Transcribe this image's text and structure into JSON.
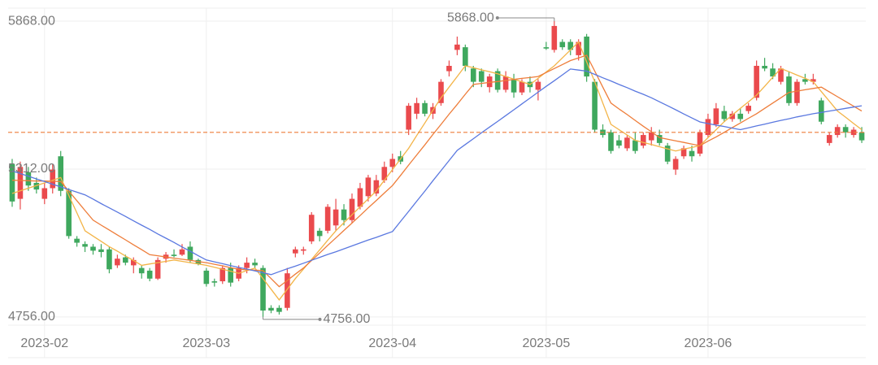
{
  "chart_data": {
    "type": "candlestick",
    "categories": [
      null,
      null,
      null,
      null,
      "2023-02",
      null,
      null,
      null,
      null,
      null,
      null,
      null,
      null,
      null,
      null,
      null,
      null,
      null,
      null,
      null,
      null,
      null,
      null,
      null,
      "2023-03",
      null,
      null,
      null,
      null,
      null,
      null,
      null,
      null,
      null,
      null,
      null,
      null,
      null,
      null,
      null,
      null,
      null,
      null,
      null,
      null,
      null,
      null,
      "2023-04",
      null,
      null,
      null,
      null,
      null,
      null,
      null,
      null,
      null,
      null,
      null,
      null,
      null,
      null,
      null,
      null,
      null,
      null,
      "2023-05",
      null,
      null,
      null,
      null,
      null,
      null,
      null,
      null,
      null,
      null,
      null,
      null,
      null,
      null,
      null,
      null,
      null,
      null,
      null,
      "2023-06",
      null,
      null,
      null,
      null,
      null,
      null,
      null,
      null,
      null,
      null,
      null,
      null,
      null,
      null,
      null,
      null,
      null,
      null,
      null
    ],
    "open": [
      5330,
      5200,
      5300,
      5260,
      5200,
      5240,
      5360,
      5230,
      5050,
      5030,
      5020,
      5010,
      5010,
      4950,
      4980,
      4950,
      4940,
      4930,
      4900,
      4975,
      4990,
      4990,
      5020,
      4970,
      4930,
      4890,
      4890,
      4940,
      4900,
      4940,
      4960,
      4940,
      4790,
      4790,
      4790,
      4995,
      5005,
      5040,
      5080,
      5080,
      5100,
      5160,
      5120,
      5170,
      5210,
      5220,
      5270,
      5320,
      5360,
      5460,
      5520,
      5560,
      5520,
      5560,
      5680,
      5760,
      5770,
      5690,
      5680,
      5620,
      5680,
      5610,
      5650,
      5600,
      5640,
      5610,
      5770,
      5760,
      5790,
      5790,
      5740,
      5810,
      5640,
      5460,
      5450,
      5420,
      5390,
      5420,
      5400,
      5420,
      5440,
      5400,
      5310,
      5360,
      5380,
      5370,
      5440,
      5480,
      5530,
      5500,
      5520,
      5530,
      5580,
      5700,
      5690,
      5640,
      5660,
      5560,
      5650,
      5640,
      5570,
      5410,
      5440,
      5470,
      5440,
      5450
    ],
    "high": [
      5350,
      5340,
      5320,
      5280,
      5260,
      5330,
      5380,
      5240,
      5060,
      5040,
      5030,
      5030,
      5020,
      4990,
      4990,
      4980,
      4950,
      4940,
      4980,
      5000,
      5010,
      5030,
      5040,
      4975,
      4940,
      4900,
      4950,
      4960,
      4950,
      4980,
      4975,
      4950,
      4800,
      4800,
      4940,
      5020,
      5020,
      5150,
      5090,
      5180,
      5200,
      5180,
      5220,
      5260,
      5290,
      5290,
      5340,
      5370,
      5380,
      5560,
      5580,
      5570,
      5560,
      5650,
      5720,
      5810,
      5780,
      5700,
      5690,
      5670,
      5690,
      5680,
      5670,
      5650,
      5660,
      5650,
      5790,
      5868,
      5800,
      5800,
      5800,
      5820,
      5650,
      5480,
      5460,
      5440,
      5440,
      5450,
      5450,
      5470,
      5460,
      5410,
      5360,
      5400,
      5400,
      5460,
      5520,
      5560,
      5550,
      5530,
      5540,
      5560,
      5720,
      5730,
      5710,
      5700,
      5680,
      5650,
      5670,
      5670,
      5580,
      5450,
      5480,
      5480,
      5470,
      5470
    ],
    "low": [
      5170,
      5160,
      5230,
      5220,
      5180,
      5220,
      5210,
      5050,
      5020,
      5000,
      4990,
      4980,
      4920,
      4940,
      4950,
      4920,
      4900,
      4890,
      4895,
      4960,
      4980,
      4985,
      4960,
      4950,
      4870,
      4870,
      4880,
      4870,
      4890,
      4920,
      4940,
      4756,
      4770,
      4765,
      4780,
      4980,
      4990,
      5030,
      5040,
      5070,
      5080,
      5100,
      5110,
      5160,
      5190,
      5210,
      5260,
      5300,
      5330,
      5440,
      5500,
      5510,
      5500,
      5550,
      5660,
      5740,
      5680,
      5620,
      5620,
      5600,
      5600,
      5600,
      5580,
      5590,
      5600,
      5570,
      5760,
      5750,
      5760,
      5740,
      5720,
      5640,
      5450,
      5430,
      5370,
      5390,
      5380,
      5370,
      5390,
      5400,
      5400,
      5330,
      5290,
      5350,
      5340,
      5360,
      5430,
      5470,
      5490,
      5490,
      5490,
      5520,
      5570,
      5680,
      5650,
      5630,
      5550,
      5550,
      5630,
      5630,
      5480,
      5400,
      5430,
      5430,
      5430,
      5410
    ],
    "close": [
      5190,
      5320,
      5250,
      5235,
      5240,
      5310,
      5230,
      5060,
      5035,
      5020,
      5005,
      5000,
      4935,
      4975,
      4960,
      4970,
      4920,
      4900,
      4970,
      4990,
      4985,
      5010,
      4970,
      4955,
      4880,
      4885,
      4940,
      4885,
      4940,
      4960,
      4950,
      4780,
      4780,
      4775,
      4920,
      5010,
      5010,
      5140,
      5060,
      5170,
      5160,
      5120,
      5200,
      5240,
      5280,
      5270,
      5320,
      5350,
      5340,
      5550,
      5560,
      5520,
      5545,
      5640,
      5700,
      5780,
      5700,
      5640,
      5640,
      5660,
      5610,
      5660,
      5600,
      5640,
      5620,
      5640,
      5765,
      5850,
      5770,
      5760,
      5790,
      5660,
      5460,
      5440,
      5380,
      5400,
      5430,
      5380,
      5440,
      5450,
      5410,
      5340,
      5350,
      5390,
      5360,
      5450,
      5500,
      5540,
      5500,
      5520,
      5500,
      5550,
      5700,
      5690,
      5660,
      5690,
      5560,
      5640,
      5640,
      5650,
      5490,
      5440,
      5470,
      5450,
      5460,
      5420
    ],
    "up_color": "#ea4a4d",
    "down_color": "#3fa85e",
    "series": [
      {
        "color": "#f3b447",
        "values": [
          5220,
          5230,
          5240,
          5250,
          5260,
          5270,
          5280,
          5213,
          5147,
          5080,
          5060,
          5040,
          5020,
          5003,
          4985,
          4968,
          4950,
          4955,
          4960,
          4965,
          4970,
          4965,
          4960,
          4955,
          4950,
          4943,
          4935,
          4928,
          4920,
          4930,
          4940,
          4900,
          4860,
          4820,
          4860,
          4900,
          4936,
          4972,
          5008,
          5044,
          5080,
          5110,
          5140,
          5170,
          5200,
          5230,
          5270,
          5310,
          5350,
          5390,
          5438,
          5485,
          5533,
          5580,
          5620,
          5660,
          5700,
          5693,
          5685,
          5678,
          5670,
          5660,
          5650,
          5640,
          5630,
          5653,
          5677,
          5700,
          5730,
          5760,
          5790,
          5715,
          5640,
          5560,
          5480,
          5460,
          5440,
          5420,
          5412,
          5404,
          5396,
          5388,
          5380,
          5387,
          5393,
          5400,
          5430,
          5460,
          5490,
          5515,
          5540,
          5565,
          5590,
          5623,
          5657,
          5690,
          5678,
          5665,
          5653,
          5640,
          5603,
          5567,
          5530,
          5507,
          5483,
          5460
        ]
      },
      {
        "color": "#ee7d3a",
        "values": [
          5270,
          5269,
          5268,
          5267,
          5267,
          5266,
          5265,
          5229,
          5193,
          5156,
          5120,
          5101,
          5083,
          5064,
          5046,
          5027,
          5009,
          4990,
          4986,
          4981,
          4977,
          4973,
          4969,
          4964,
          4960,
          4954,
          4948,
          4941,
          4935,
          4933,
          4932,
          4930,
          4900,
          4870,
          4893,
          4917,
          4940,
          4968,
          4996,
          5025,
          5053,
          5081,
          5109,
          5137,
          5166,
          5194,
          5222,
          5250,
          5288,
          5327,
          5365,
          5403,
          5442,
          5480,
          5518,
          5555,
          5593,
          5630,
          5634,
          5638,
          5641,
          5645,
          5649,
          5653,
          5656,
          5660,
          5675,
          5690,
          5705,
          5720,
          5730,
          5740,
          5680,
          5620,
          5560,
          5538,
          5517,
          5495,
          5473,
          5452,
          5430,
          5424,
          5418,
          5412,
          5406,
          5400,
          5417,
          5433,
          5450,
          5468,
          5485,
          5503,
          5520,
          5540,
          5560,
          5580,
          5600,
          5605,
          5610,
          5615,
          5620,
          5602,
          5584,
          5566,
          5548,
          5530
        ]
      },
      {
        "color": "#5a78e0",
        "values": [
          5305,
          5295,
          5285,
          5275,
          5265,
          5255,
          5245,
          5235,
          5225,
          5215,
          5199,
          5182,
          5166,
          5150,
          5134,
          5117,
          5101,
          5085,
          5068,
          5052,
          5036,
          5019,
          5003,
          4986,
          4970,
          4963,
          4956,
          4949,
          4942,
          4936,
          4929,
          4922,
          4915,
          4926,
          4937,
          4947,
          4958,
          4969,
          4980,
          4991,
          5001,
          5012,
          5023,
          5034,
          5045,
          5055,
          5066,
          5077,
          5115,
          5153,
          5191,
          5229,
          5268,
          5306,
          5344,
          5382,
          5404,
          5426,
          5448,
          5470,
          5491,
          5513,
          5535,
          5557,
          5579,
          5601,
          5623,
          5644,
          5666,
          5688,
          5684,
          5680,
          5668,
          5655,
          5643,
          5630,
          5618,
          5605,
          5593,
          5580,
          5565,
          5550,
          5535,
          5519,
          5504,
          5489,
          5483,
          5477,
          5472,
          5466,
          5460,
          5467,
          5474,
          5481,
          5488,
          5495,
          5501,
          5508,
          5514,
          5520,
          5525,
          5530,
          5535,
          5540,
          5545,
          5550
        ]
      }
    ],
    "price_line": {
      "value": 5450,
      "color": "#ee7d3a"
    },
    "annotations": [
      {
        "label": "5868.00",
        "value": 5868,
        "at": "high"
      },
      {
        "label": "4756.00",
        "value": 4756,
        "at": "low"
      }
    ],
    "ylim": [
      4725,
      5917
    ],
    "yticks": [
      {
        "value": 4756,
        "label": "4756.00"
      },
      {
        "value": 5312,
        "label": "5312.00"
      },
      {
        "value": 5868,
        "label": "5868.00"
      }
    ],
    "grid": true
  }
}
